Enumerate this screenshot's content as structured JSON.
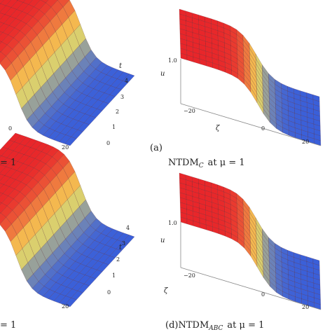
{
  "figure": {
    "panels": [
      {
        "id": "top-left",
        "caption": "",
        "axis_t_label": "t",
        "t_ticks": [
          "0",
          "1",
          "2",
          "3",
          "4"
        ],
        "zeta_ticks": [
          "0",
          "20"
        ],
        "edge_caption": ""
      },
      {
        "id": "top-right",
        "caption_letter": "(a)",
        "method": "NTDM",
        "method_sub": "C",
        "param": "at  μ = 1",
        "axis_u_label": "u",
        "axis_zeta_label": "ζ",
        "u_ticks": [
          "1.0"
        ],
        "zeta_ticks": [
          "−20",
          "0",
          "20"
        ]
      },
      {
        "id": "bottom-left",
        "axis_t_label": "t",
        "t_ticks": [
          "0",
          "1",
          "2",
          "3",
          "4"
        ],
        "zeta_ticks": [
          "0",
          "20"
        ],
        "edge_caption": "= 1"
      },
      {
        "id": "bottom-right",
        "caption_letter": "(d)",
        "method": "NTDM",
        "method_sub": "ABC",
        "param": "at  μ = 1",
        "axis_u_label": "u",
        "axis_zeta_label": "ζ",
        "u_ticks": [
          "1.0"
        ],
        "zeta_ticks": [
          "−20",
          "0",
          "20"
        ]
      }
    ],
    "top_left_edge_caption": "= 1",
    "colors": {
      "high": "#e8262a",
      "mid": "#f7e45a",
      "low": "#3a5fd9",
      "mesh": "#55202a"
    }
  }
}
